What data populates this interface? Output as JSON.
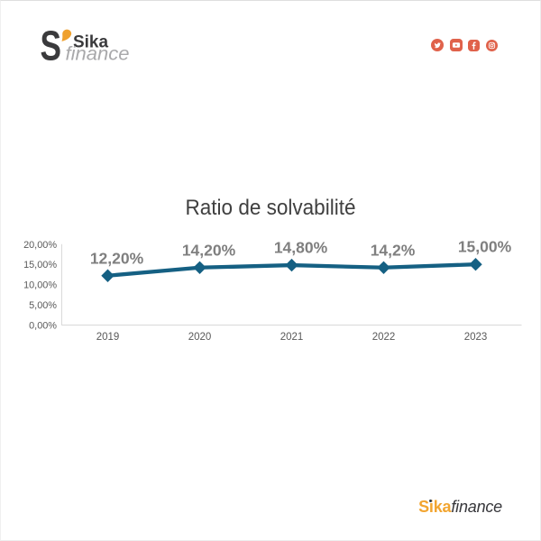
{
  "brand": {
    "logo_s": "S",
    "logo_apostrophe": "’",
    "logo_name": "Sika",
    "logo_sub": "finance",
    "orange": "#efa12f",
    "charcoal": "#3a3a3c",
    "gray": "#a9a9ab"
  },
  "socials": {
    "color": "#e0624b",
    "icons": [
      "twitter",
      "youtube",
      "facebook",
      "instagram"
    ]
  },
  "chart_data": {
    "type": "line",
    "title": "Ratio de solvabilité",
    "categories": [
      "2019",
      "2020",
      "2021",
      "2022",
      "2023"
    ],
    "series": [
      {
        "name": "Ratio de solvabilité",
        "values": [
          12.2,
          14.2,
          14.8,
          14.2,
          15.0
        ]
      }
    ],
    "point_labels": [
      "12,20%",
      "14,20%",
      "14,80%",
      "14,2%",
      "15,00%"
    ],
    "y_tick_labels": [
      "20,00%",
      "15,00%",
      "10,00%",
      "5,00%",
      "0,00%"
    ],
    "y_tick_values": [
      20,
      15,
      10,
      5,
      0
    ],
    "ylim": [
      0,
      20
    ],
    "xlabel": "",
    "ylabel": "",
    "grid": false,
    "legend": "none",
    "line_color": "#156083",
    "marker": "diamond",
    "axis_color": "#d9d9d9",
    "title_color": "#404040",
    "tick_color": "#595959",
    "label_color": "#7f7f7f"
  },
  "footer": {
    "brand_primary": "Sika",
    "brand_secondary": "finance"
  }
}
